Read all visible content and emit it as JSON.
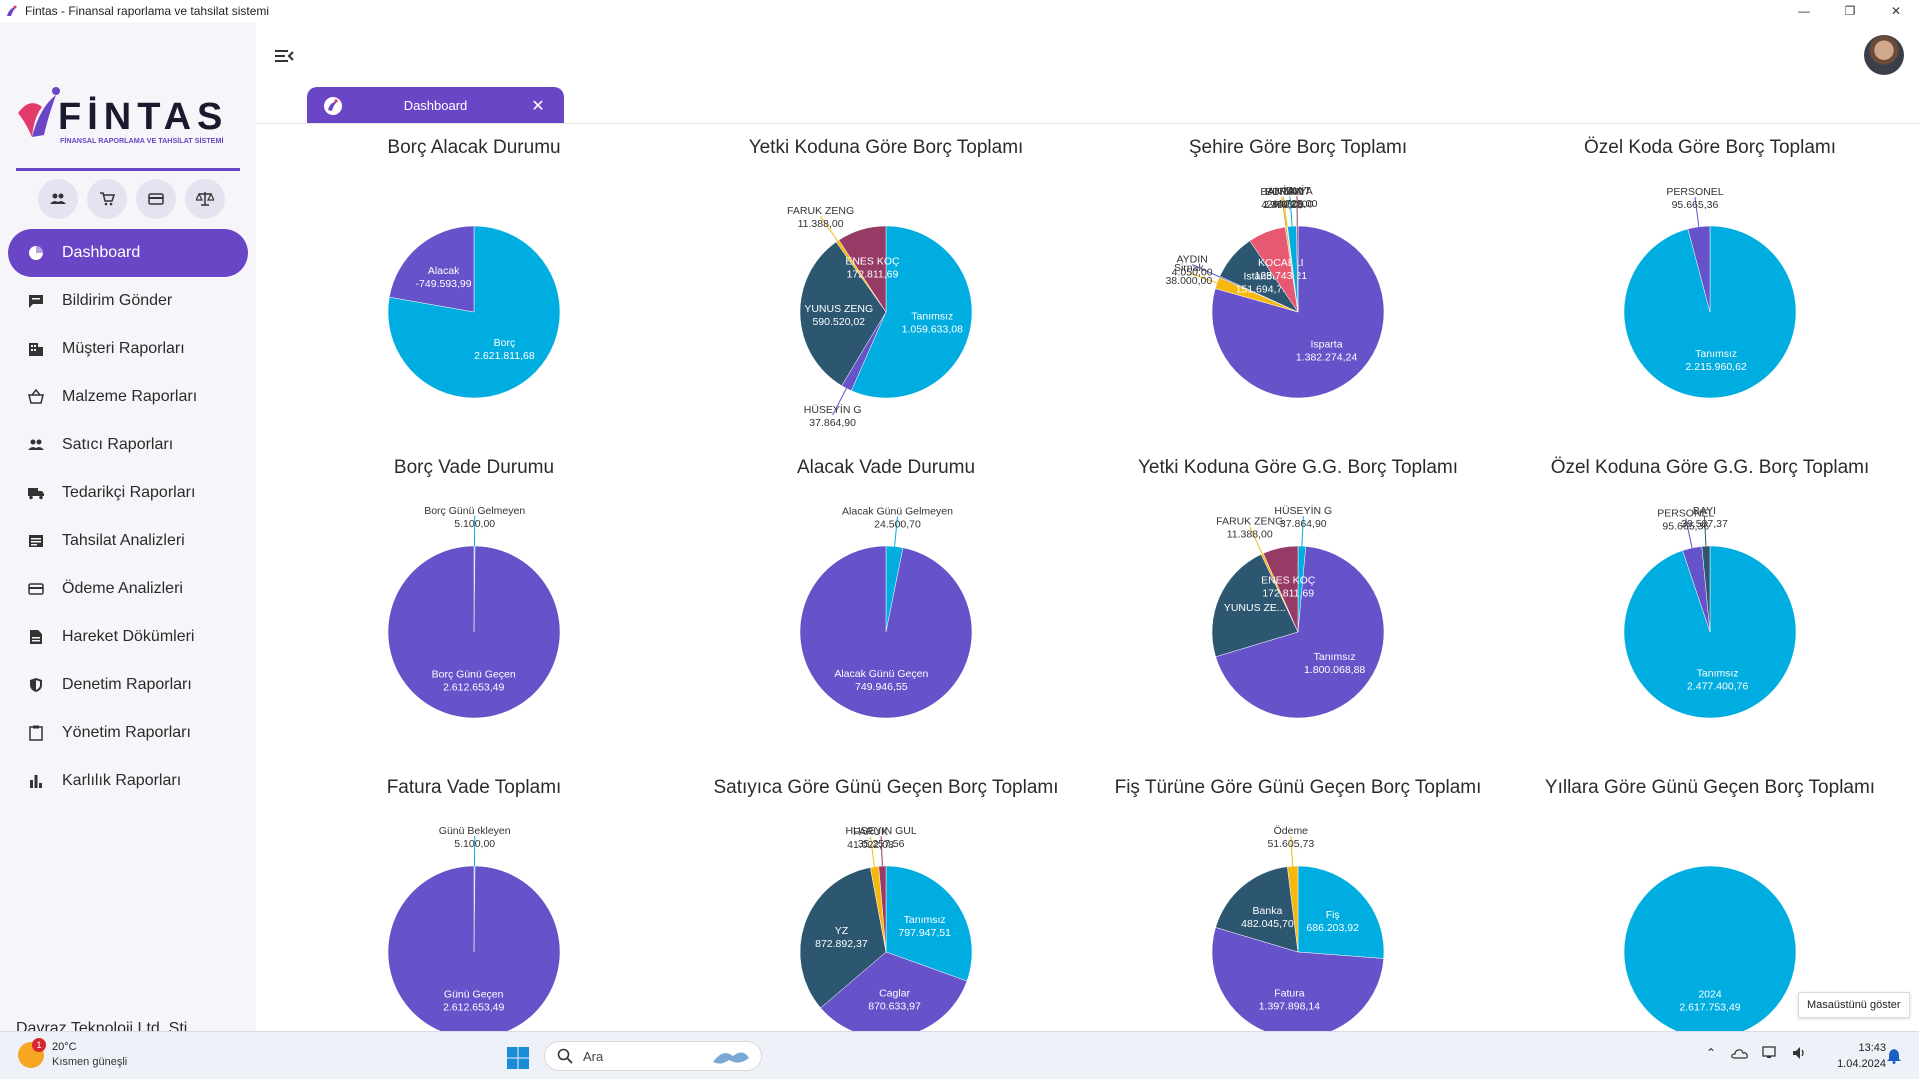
{
  "window": {
    "title": "Fintas - Finansal raporlama ve tahsilat sistemi",
    "controls": [
      "minimize",
      "maximize",
      "close"
    ]
  },
  "logo": {
    "text": "FİNTAS",
    "tagline": "FİNANSAL RAPORLAMA VE TAHSİLAT SİSTEMİ"
  },
  "quick_icons": [
    "users-icon",
    "cart-icon",
    "card-icon",
    "scale-icon"
  ],
  "sidebar": {
    "items": [
      {
        "label": "Dashboard",
        "icon": "dashboard-icon",
        "active": true
      },
      {
        "label": "Bildirim Gönder",
        "icon": "message-icon"
      },
      {
        "label": "Müşteri Raporları",
        "icon": "building-icon"
      },
      {
        "label": "Malzeme Raporları",
        "icon": "basket-icon"
      },
      {
        "label": "Satıcı Raporları",
        "icon": "people-icon"
      },
      {
        "label": "Tedarikçi Raporları",
        "icon": "truck-icon"
      },
      {
        "label": "Tahsilat Analizleri",
        "icon": "list-icon"
      },
      {
        "label": "Ödeme Analizleri",
        "icon": "card-icon"
      },
      {
        "label": "Hareket Dökümleri",
        "icon": "document-icon"
      },
      {
        "label": "Denetim Raporları",
        "icon": "shield-icon"
      },
      {
        "label": "Yönetim Raporları",
        "icon": "clipboard-icon"
      },
      {
        "label": "Karlılık Raporları",
        "icon": "bar-chart-icon"
      }
    ],
    "company": "Davraz Teknoloji Ltd. Şti."
  },
  "tab": {
    "label": "Dashboard"
  },
  "colors": {
    "purple": "#6a46c6",
    "cyan": "#00ade0",
    "slate": "#2d5670",
    "pie_purple": "#6652c9",
    "maroon": "#963a66",
    "orange": "#f7b80e",
    "pink": "#e75873",
    "olive": "#c6b73c"
  },
  "chart_data": [
    {
      "type": "pie",
      "title": "Borç Alacak Durumu",
      "slices": [
        {
          "label": "Borç",
          "value": 2621811.68,
          "display": "2.621.811,68",
          "color": "#00ade0"
        },
        {
          "label": "Alacak",
          "value": 749593.99,
          "display": "-749.593,99",
          "color": "#6652c9"
        }
      ]
    },
    {
      "type": "pie",
      "title": "Yetki Koduna Göre Borç Toplamı",
      "slices": [
        {
          "label": "Tanımsız",
          "value": 1059633.08,
          "display": "1.059.633,08",
          "color": "#00ade0"
        },
        {
          "label": "HÜSEYİN G",
          "value": 37864.9,
          "display": "37.864,90",
          "color": "#6652c9"
        },
        {
          "label": "YUNUS ZENG",
          "value": 590520.02,
          "display": "590.520,02",
          "color": "#2d5670"
        },
        {
          "label": "FARUK ZENG",
          "value": 11388.0,
          "display": "11.388,00",
          "color": "#f7b80e"
        },
        {
          "label": "ENES KOÇ",
          "value": 172811.69,
          "display": "172.811,69",
          "color": "#963a66"
        }
      ]
    },
    {
      "type": "pie",
      "title": "Şehire Göre Borç Toplamı",
      "slices": [
        {
          "label": "Isparta",
          "value": 1382274.24,
          "display": "1.382.274,24",
          "color": "#6652c9"
        },
        {
          "label": "Sirnak",
          "value": 38000.0,
          "display": "38.000,00",
          "color": "#f7b80e"
        },
        {
          "label": "AYDIN",
          "value": 4050.0,
          "display": "4.050,00",
          "color": "#6652c9"
        },
        {
          "label": "Istanbul",
          "value": 151694.76,
          "display": "151.694,76",
          "color": "#2d5670"
        },
        {
          "label": "KOCAELI",
          "value": 123743.21,
          "display": "123.743,21",
          "color": "#e75873"
        },
        {
          "label": "BATMAN",
          "value": 4979.28,
          "display": "4.979,28",
          "color": "#c6b73c"
        },
        {
          "label": "BURSA",
          "value": 2400.0,
          "display": "2.400,00",
          "color": "#f7b80e"
        },
        {
          "label": "ANTALYA",
          "value": 29034.0,
          "display": "29.034,00",
          "color": "#00ade0"
        },
        {
          "label": "İZMİT",
          "value": 4725.0,
          "display": "4.725,00",
          "color": "#963a66"
        }
      ]
    },
    {
      "type": "pie",
      "title": "Özel Koda Göre Borç Toplamı",
      "slices": [
        {
          "label": "Tanımsız",
          "value": 2215960.62,
          "display": "2.215.960,62",
          "color": "#00ade0"
        },
        {
          "label": "PERSONEL",
          "value": 95665.36,
          "display": "95.665,36",
          "color": "#6652c9"
        }
      ]
    },
    {
      "type": "pie",
      "title": "Borç Vade Durumu",
      "slices": [
        {
          "label": "Borç Günü Gelmeyen",
          "value": 5100.0,
          "display": "5.100,00",
          "color": "#00ade0"
        },
        {
          "label": "Borç Günü Geçen",
          "value": 2612653.49,
          "display": "2.612.653,49",
          "color": "#6652c9"
        }
      ]
    },
    {
      "type": "pie",
      "title": "Alacak Vade Durumu",
      "slices": [
        {
          "label": "Alacak Günü Gelmeyen",
          "value": 24500.7,
          "display": "24.500,70",
          "color": "#00ade0"
        },
        {
          "label": "Alacak Günü Geçen",
          "value": 749946.55,
          "display": "749.946,55",
          "color": "#6652c9"
        }
      ]
    },
    {
      "type": "pie",
      "title": "Yetki Koduna Göre G.G. Borç Toplamı",
      "slices": [
        {
          "label": "HÜSEYİN G",
          "value": 37864.9,
          "display": "37.864,90",
          "color": "#00ade0"
        },
        {
          "label": "Tanımsız",
          "value": 1800068.88,
          "display": "1.800.068,88",
          "color": "#6652c9"
        },
        {
          "label": "YUNUS ZE...",
          "value": 590520.02,
          "display": "",
          "color": "#2d5670"
        },
        {
          "label": "FARUK ZENG",
          "value": 11388.0,
          "display": "11.388,00",
          "color": "#f7b80e"
        },
        {
          "label": "ENES KOÇ",
          "value": 172811.69,
          "display": "172.811,69",
          "color": "#963a66"
        }
      ]
    },
    {
      "type": "pie",
      "title": "Özel Koduna Göre G.G. Borç Toplamı",
      "slices": [
        {
          "label": "Tanımsız",
          "value": 2477400.76,
          "display": "2.477.400,76",
          "color": "#00ade0"
        },
        {
          "label": "PERSONEL",
          "value": 95665.36,
          "display": "95.665,36",
          "color": "#6652c9"
        },
        {
          "label": "BAYI",
          "value": 39587.37,
          "display": "39.587,37",
          "color": "#2d5670"
        }
      ]
    },
    {
      "type": "pie",
      "title": "Fatura Vade Toplamı",
      "slices": [
        {
          "label": "Günü Bekleyen",
          "value": 5100.0,
          "display": "5.100,00",
          "color": "#00ade0"
        },
        {
          "label": "Günü Geçen",
          "value": 2612653.49,
          "display": "2.612.653,49",
          "color": "#6652c9"
        }
      ]
    },
    {
      "type": "pie",
      "title": "Satıyıca Göre Günü Geçen Borç Toplamı",
      "slices": [
        {
          "label": "Tanımsız",
          "value": 797947.51,
          "display": "797.947,51",
          "color": "#00ade0"
        },
        {
          "label": "Caglar",
          "value": 870633.97,
          "display": "870.633,97",
          "color": "#6652c9"
        },
        {
          "label": "YZ",
          "value": 872892.37,
          "display": "872.892,37",
          "color": "#2d5670"
        },
        {
          "label": "FARUK",
          "value": 41022.08,
          "display": "41.022,08",
          "color": "#f7b80e"
        },
        {
          "label": "HUSEYIN GUL",
          "value": 35257.56,
          "display": "35.257,56",
          "color": "#963a66"
        }
      ]
    },
    {
      "type": "pie",
      "title": "Fiş Türüne Göre Günü Geçen Borç Toplamı",
      "slices": [
        {
          "label": "Fiş",
          "value": 686203.92,
          "display": "686.203,92",
          "color": "#00ade0"
        },
        {
          "label": "Fatura",
          "value": 1397898.14,
          "display": "1.397.898,14",
          "color": "#6652c9"
        },
        {
          "label": "Banka",
          "value": 482045.7,
          "display": "482.045,70",
          "color": "#2d5670"
        },
        {
          "label": "Ödeme",
          "value": 51605.73,
          "display": "51.605,73",
          "color": "#f7b80e"
        }
      ]
    },
    {
      "type": "pie",
      "title": "Yıllara Göre Günü Geçen Borç Toplamı",
      "slices": [
        {
          "label": "2024",
          "value": 2617753.49,
          "display": "2.617.753,49",
          "color": "#00ade0"
        }
      ]
    }
  ],
  "taskbar": {
    "weather_temp": "20°C",
    "weather_cond": "Kısmen güneşli",
    "weather_badge": "1",
    "search_placeholder": "Ara",
    "time": "13:43",
    "date": "1.04.2024",
    "tooltip": "Masaüstünü göster"
  }
}
